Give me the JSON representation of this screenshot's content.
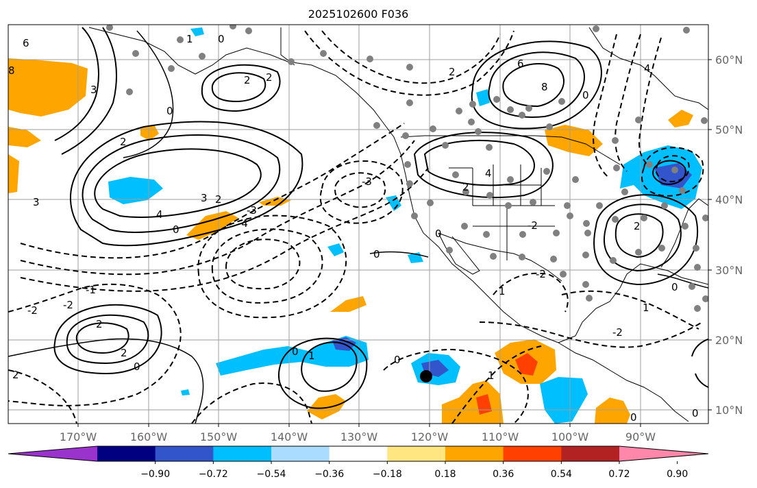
{
  "title": "2025102600 F036",
  "lon_ticks": [
    "170°W",
    "160°W",
    "150°W",
    "140°W",
    "130°W",
    "120°W",
    "110°W",
    "100°W",
    "90°W"
  ],
  "lat_ticks": [
    "60°N",
    "50°N",
    "40°N",
    "30°N",
    "20°N",
    "10°N"
  ],
  "colorbar": {
    "tick_labels": [
      "−0.90",
      "−0.72",
      "−0.54",
      "−0.36",
      "−0.18",
      "0.18",
      "0.36",
      "0.54",
      "0.72",
      "0.90"
    ],
    "colors": [
      "#9933cc",
      "#000080",
      "#3355cc",
      "#00bfff",
      "#aadcff",
      "#ffffff",
      "#ffe680",
      "#ffa500",
      "#ff4000",
      "#b22222",
      "#ff88aa"
    ]
  },
  "contour_labels": [
    "6",
    "8",
    "3",
    "1",
    "0",
    "2",
    "-2",
    "4",
    "-3",
    "-4",
    "-1"
  ],
  "fill_colors": {
    "pos_light": "#ffa500",
    "pos_mid": "#ff4000",
    "neg_light": "#00bfff",
    "neg_mid": "#3355cc"
  }
}
